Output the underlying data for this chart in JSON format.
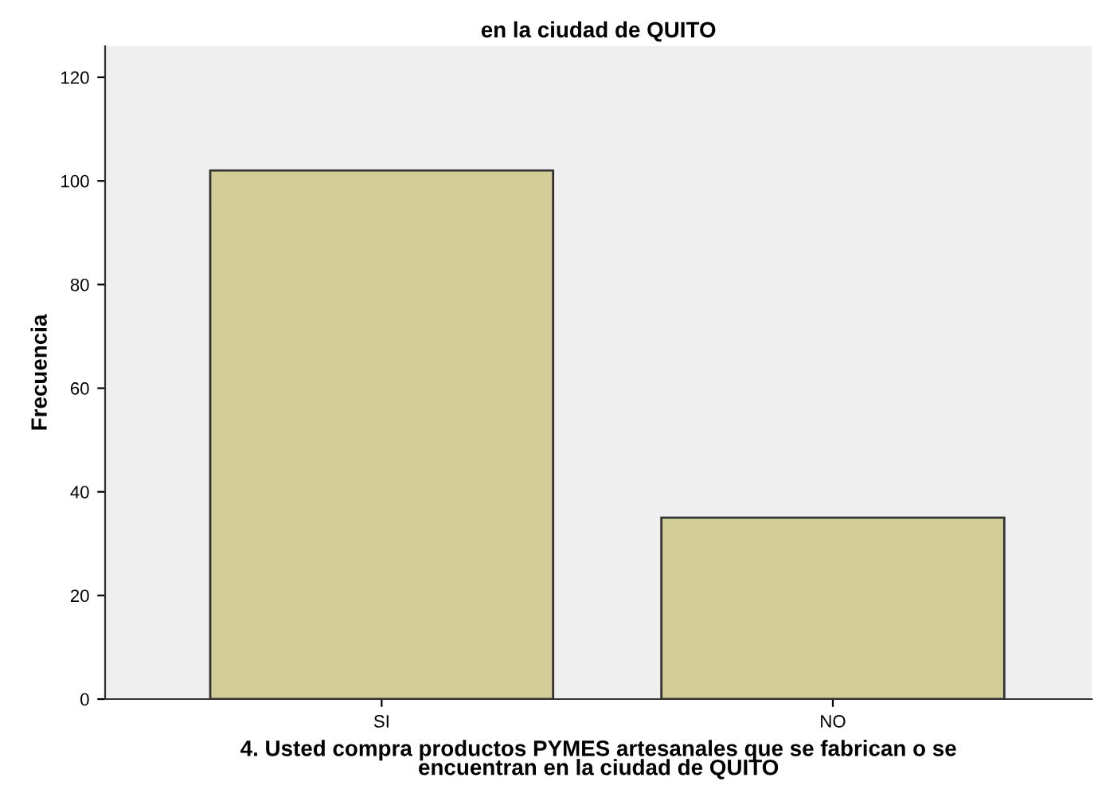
{
  "chart_data": {
    "type": "bar",
    "title": "en la ciudad de QUITO",
    "categories": [
      "SI",
      "NO"
    ],
    "values": [
      102,
      35
    ],
    "color": "#d3ce97",
    "xlabel": "4. Usted compra productos PYMES artesanales que se fabrican o se\nencuentran en la ciudad de QUITO",
    "ylabel": "Frecuencia",
    "ylim": [
      0,
      126
    ],
    "yticks": [
      0,
      20,
      40,
      60,
      80,
      100,
      120
    ],
    "grid": false
  }
}
